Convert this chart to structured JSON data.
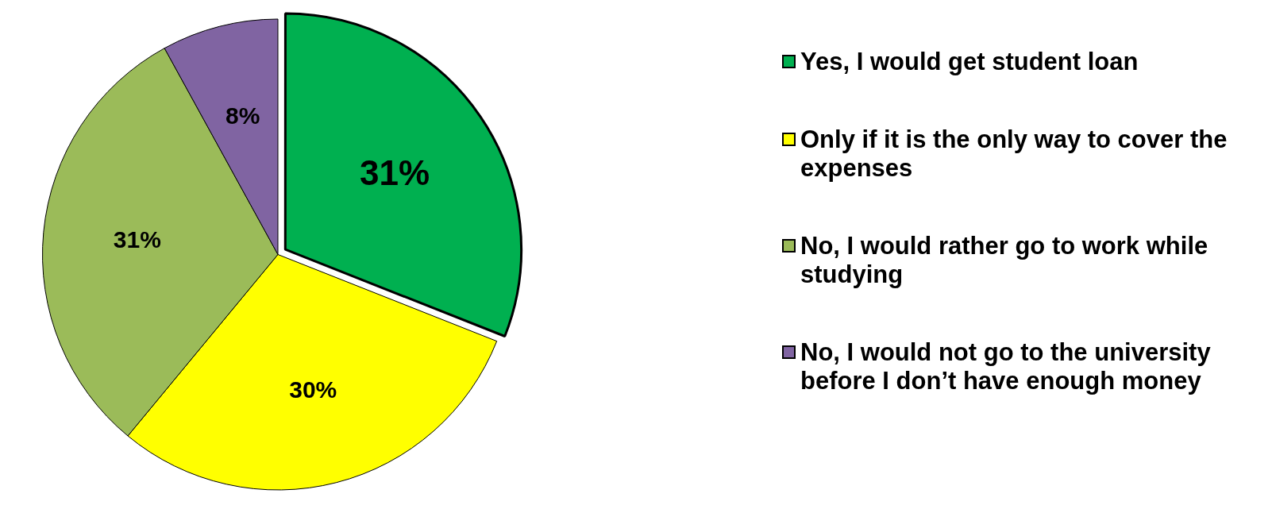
{
  "chart_data": {
    "type": "pie",
    "categories": [
      "Yes, I would get student loan",
      "Only if it is the only way to cover the expenses",
      "No, I would rather go to work while studying",
      "No, I would not go to the university before I don’t have enough money"
    ],
    "values": [
      31,
      30,
      31,
      8
    ],
    "colors": [
      "#00b050",
      "#ffff00",
      "#9bbb59",
      "#8064a2"
    ],
    "value_labels": [
      "31%",
      "30%",
      "31%",
      "8%"
    ],
    "legend": "right"
  }
}
